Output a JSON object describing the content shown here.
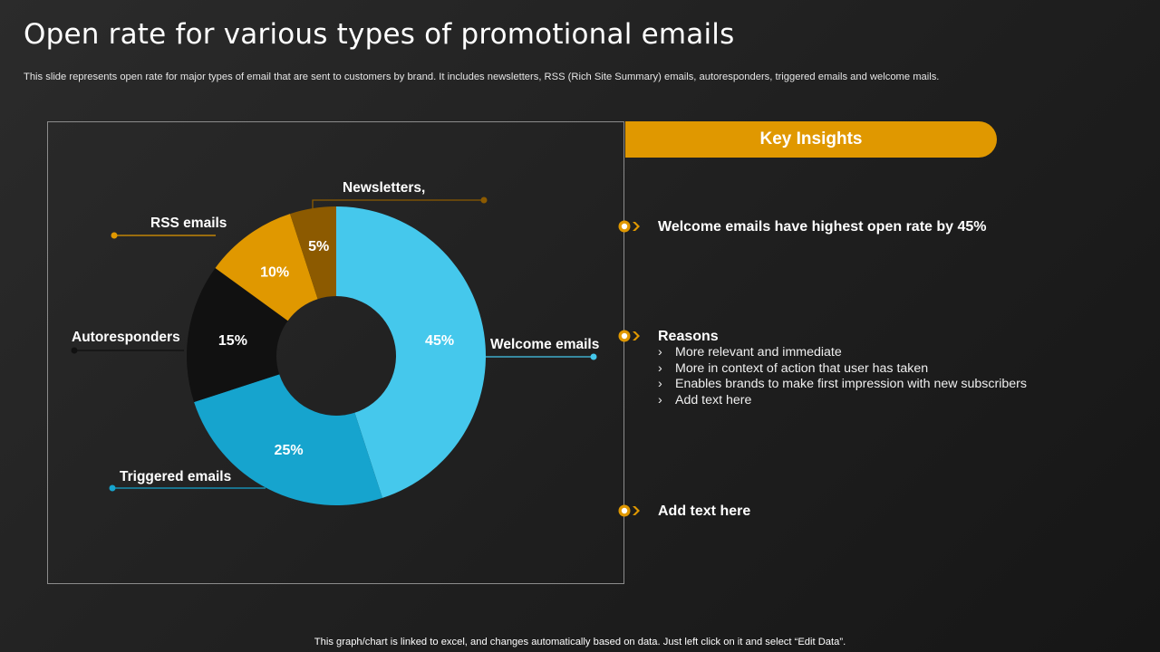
{
  "slide": {
    "title": "Open rate for various types of promotional emails",
    "subtitle": "This slide represents open rate for major types of email that are sent to customers by brand. It includes newsletters, RSS (Rich Site Summary) emails, autoresponders, triggered emails and welcome mails.",
    "footer": "This graph/chart is linked to excel,  and changes automatically based on data. Just left click on it and select “Edit Data”."
  },
  "chart_data": {
    "type": "pie",
    "donut": true,
    "categories": [
      "Welcome emails",
      "Triggered emails",
      "Autoresponders",
      "RSS emails",
      "Newsletters,"
    ],
    "values": [
      45,
      25,
      15,
      10,
      5
    ],
    "value_labels": [
      "45%",
      "25%",
      "15%",
      "10%",
      "5%"
    ],
    "colors": [
      "#45c8ec",
      "#16a4ce",
      "#111111",
      "#e09800",
      "#8c5a00"
    ],
    "label_colors": [
      "#45c8ec",
      "#16a4ce",
      "#111111",
      "#e09800",
      "#8c5a00"
    ],
    "legend": "none"
  },
  "insights": {
    "header": "Key Insights",
    "items": [
      {
        "text": "Welcome emails have highest open rate by 45%"
      },
      {
        "text": "Reasons",
        "points": [
          "More relevant and immediate",
          "More in context of action that user has taken",
          "Enables brands to make first impression with new subscribers",
          "Add text here"
        ]
      },
      {
        "text": "Add text here"
      }
    ],
    "bullet_color": "#e09800",
    "chevron_glyph": "›"
  }
}
